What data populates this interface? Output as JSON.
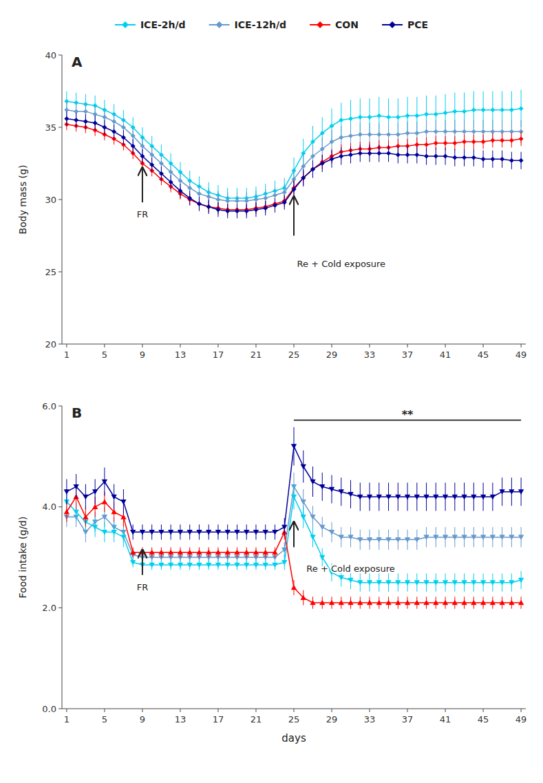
{
  "chart_data": [
    {
      "type": "line",
      "title": "A",
      "ylabel": "Body mass (g)",
      "xlim": [
        0.5,
        49.5
      ],
      "xticks": [
        1,
        5,
        9,
        13,
        17,
        21,
        25,
        29,
        33,
        37,
        41,
        45,
        49
      ],
      "ylim": [
        20,
        40
      ],
      "yticks": [
        20,
        25,
        30,
        35,
        40
      ],
      "grid": false,
      "legend": "top",
      "x": [
        1,
        2,
        3,
        4,
        5,
        6,
        7,
        8,
        9,
        10,
        11,
        12,
        13,
        14,
        15,
        16,
        17,
        18,
        19,
        20,
        21,
        22,
        23,
        24,
        25,
        26,
        27,
        28,
        29,
        30,
        31,
        32,
        33,
        34,
        35,
        36,
        37,
        38,
        39,
        40,
        41,
        42,
        43,
        44,
        45,
        46,
        47,
        48,
        49
      ],
      "series": [
        {
          "name": "ICE-2h/d",
          "color": "#00CFEF",
          "marker": "diamond",
          "values": [
            36.8,
            36.7,
            36.6,
            36.5,
            36.2,
            35.9,
            35.5,
            35.0,
            34.3,
            33.7,
            33.1,
            32.5,
            31.9,
            31.3,
            30.9,
            30.5,
            30.3,
            30.1,
            30.1,
            30.1,
            30.2,
            30.4,
            30.6,
            30.8,
            32.0,
            33.2,
            34.0,
            34.6,
            35.1,
            35.5,
            35.6,
            35.7,
            35.7,
            35.8,
            35.7,
            35.7,
            35.8,
            35.8,
            35.9,
            35.9,
            36.0,
            36.1,
            36.1,
            36.2,
            36.2,
            36.2,
            36.2,
            36.2,
            36.3
          ],
          "errors": [
            0.7,
            0.7,
            0.7,
            0.7,
            0.7,
            0.7,
            0.7,
            0.7,
            0.7,
            0.7,
            0.7,
            0.7,
            0.7,
            0.7,
            0.7,
            0.7,
            0.7,
            0.7,
            0.7,
            0.7,
            0.7,
            0.7,
            0.7,
            0.7,
            0.9,
            1.0,
            1.1,
            1.1,
            1.2,
            1.2,
            1.3,
            1.3,
            1.3,
            1.3,
            1.3,
            1.3,
            1.3,
            1.3,
            1.3,
            1.3,
            1.3,
            1.3,
            1.3,
            1.3,
            1.3,
            1.3,
            1.3,
            1.3,
            1.3
          ]
        },
        {
          "name": "ICE-12h/d",
          "color": "#6699CC",
          "marker": "diamond",
          "values": [
            36.2,
            36.1,
            36.1,
            35.9,
            35.7,
            35.4,
            35.0,
            34.4,
            33.7,
            33.1,
            32.5,
            31.9,
            31.3,
            30.8,
            30.4,
            30.2,
            30.0,
            29.9,
            29.9,
            29.9,
            30.0,
            30.1,
            30.3,
            30.5,
            31.4,
            32.3,
            33.0,
            33.5,
            34.0,
            34.3,
            34.4,
            34.5,
            34.5,
            34.5,
            34.5,
            34.5,
            34.6,
            34.6,
            34.7,
            34.7,
            34.7,
            34.7,
            34.7,
            34.7,
            34.7,
            34.7,
            34.7,
            34.7,
            34.7
          ],
          "errors": [
            0.6,
            0.6,
            0.6,
            0.6,
            0.6,
            0.6,
            0.6,
            0.6,
            0.6,
            0.6,
            0.6,
            0.6,
            0.6,
            0.6,
            0.6,
            0.6,
            0.6,
            0.6,
            0.6,
            0.6,
            0.6,
            0.6,
            0.6,
            0.6,
            0.7,
            0.8,
            0.8,
            0.8,
            0.8,
            0.8,
            0.8,
            0.8,
            0.8,
            0.8,
            0.8,
            0.8,
            0.8,
            0.8,
            0.8,
            0.8,
            0.8,
            0.8,
            0.8,
            0.8,
            0.8,
            0.8,
            0.8,
            0.8,
            0.8
          ]
        },
        {
          "name": "CON",
          "color": "#FF0000",
          "marker": "diamond",
          "values": [
            35.2,
            35.1,
            35.0,
            34.8,
            34.5,
            34.2,
            33.8,
            33.2,
            32.5,
            32.0,
            31.4,
            30.9,
            30.4,
            30.0,
            29.7,
            29.5,
            29.4,
            29.3,
            29.3,
            29.3,
            29.4,
            29.5,
            29.7,
            29.9,
            30.8,
            31.5,
            32.1,
            32.6,
            33.0,
            33.3,
            33.4,
            33.5,
            33.5,
            33.6,
            33.6,
            33.7,
            33.7,
            33.8,
            33.8,
            33.9,
            33.9,
            33.9,
            34.0,
            34.0,
            34.0,
            34.1,
            34.1,
            34.1,
            34.2
          ],
          "errors": [
            0.4,
            0.4,
            0.4,
            0.4,
            0.4,
            0.4,
            0.4,
            0.4,
            0.4,
            0.4,
            0.4,
            0.4,
            0.4,
            0.4,
            0.4,
            0.4,
            0.4,
            0.4,
            0.4,
            0.4,
            0.4,
            0.4,
            0.4,
            0.4,
            0.5,
            0.5,
            0.5,
            0.5,
            0.5,
            0.5,
            0.5,
            0.5,
            0.5,
            0.5,
            0.5,
            0.5,
            0.5,
            0.5,
            0.5,
            0.5,
            0.5,
            0.5,
            0.5,
            0.5,
            0.5,
            0.5,
            0.5,
            0.5,
            0.5
          ]
        },
        {
          "name": "PCE",
          "color": "#000099",
          "marker": "diamond",
          "values": [
            35.6,
            35.5,
            35.4,
            35.3,
            35.0,
            34.7,
            34.3,
            33.7,
            33.0,
            32.4,
            31.8,
            31.2,
            30.6,
            30.1,
            29.7,
            29.5,
            29.3,
            29.2,
            29.2,
            29.2,
            29.3,
            29.4,
            29.6,
            29.8,
            30.7,
            31.5,
            32.1,
            32.5,
            32.8,
            33.0,
            33.1,
            33.2,
            33.2,
            33.2,
            33.2,
            33.1,
            33.1,
            33.1,
            33.0,
            33.0,
            33.0,
            32.9,
            32.9,
            32.9,
            32.8,
            32.8,
            32.8,
            32.7,
            32.7
          ],
          "errors": [
            0.5,
            0.5,
            0.5,
            0.5,
            0.5,
            0.5,
            0.5,
            0.5,
            0.5,
            0.5,
            0.5,
            0.5,
            0.5,
            0.5,
            0.5,
            0.5,
            0.5,
            0.5,
            0.5,
            0.5,
            0.5,
            0.5,
            0.5,
            0.5,
            0.6,
            0.6,
            0.6,
            0.6,
            0.6,
            0.6,
            0.6,
            0.6,
            0.6,
            0.6,
            0.6,
            0.6,
            0.6,
            0.6,
            0.6,
            0.6,
            0.6,
            0.6,
            0.6,
            0.6,
            0.6,
            0.6,
            0.6,
            0.6,
            0.6
          ]
        }
      ],
      "annotations": [
        {
          "text": "FR",
          "x": 9,
          "y": 29.2,
          "arrow": {
            "x": 9,
            "y0": 29.8,
            "y1": 32.2
          }
        },
        {
          "text": "Re + Cold exposure",
          "x": 30,
          "y": 25.8,
          "arrow": {
            "x": 25,
            "y0": 27.5,
            "y1": 30.2
          }
        }
      ]
    },
    {
      "type": "line",
      "title": "B",
      "ylabel": "Food intake (g/d)",
      "xlabel": "days",
      "xlim": [
        0.5,
        49.5
      ],
      "xticks": [
        1,
        5,
        9,
        13,
        17,
        21,
        25,
        29,
        33,
        37,
        41,
        45,
        49
      ],
      "ylim": [
        0.0,
        6.0
      ],
      "yticks": [
        {
          "value": 0.0,
          "label": "0.0"
        },
        {
          "value": 2.0,
          "label": "2.0"
        },
        {
          "value": 4.0,
          "label": "4.0"
        },
        {
          "value": 6.0,
          "label": "6.0"
        }
      ],
      "grid": false,
      "x": [
        1,
        2,
        3,
        4,
        5,
        6,
        7,
        8,
        9,
        10,
        11,
        12,
        13,
        14,
        15,
        16,
        17,
        18,
        19,
        20,
        21,
        22,
        23,
        24,
        25,
        26,
        27,
        28,
        29,
        30,
        31,
        32,
        33,
        34,
        35,
        36,
        37,
        38,
        39,
        40,
        41,
        42,
        43,
        44,
        45,
        46,
        47,
        48,
        49
      ],
      "series": [
        {
          "name": "ICE-12h/d",
          "color": "#6699CC",
          "marker": "triangle-down",
          "values": [
            3.8,
            3.8,
            3.5,
            3.7,
            3.8,
            3.6,
            3.5,
            3.05,
            3.0,
            3.0,
            3.0,
            3.0,
            3.0,
            3.0,
            3.0,
            3.0,
            3.0,
            3.0,
            3.0,
            3.0,
            3.0,
            3.0,
            3.0,
            3.15,
            4.4,
            4.1,
            3.8,
            3.6,
            3.5,
            3.4,
            3.4,
            3.35,
            3.35,
            3.35,
            3.35,
            3.35,
            3.35,
            3.35,
            3.4,
            3.4,
            3.4,
            3.4,
            3.4,
            3.4,
            3.4,
            3.4,
            3.4,
            3.4,
            3.4
          ],
          "errors": [
            0.2,
            0.2,
            0.2,
            0.2,
            0.2,
            0.2,
            0.2,
            0.1,
            0.1,
            0.1,
            0.1,
            0.1,
            0.1,
            0.1,
            0.1,
            0.1,
            0.1,
            0.1,
            0.1,
            0.1,
            0.1,
            0.1,
            0.1,
            0.15,
            0.28,
            0.25,
            0.22,
            0.2,
            0.2,
            0.2,
            0.2,
            0.2,
            0.2,
            0.2,
            0.2,
            0.2,
            0.2,
            0.2,
            0.2,
            0.2,
            0.2,
            0.2,
            0.2,
            0.2,
            0.2,
            0.2,
            0.2,
            0.2,
            0.2
          ]
        },
        {
          "name": "ICE-2h/d",
          "color": "#00CFEF",
          "marker": "triangle-down",
          "values": [
            4.1,
            3.9,
            3.7,
            3.6,
            3.5,
            3.5,
            3.4,
            2.9,
            2.85,
            2.85,
            2.85,
            2.85,
            2.85,
            2.85,
            2.85,
            2.85,
            2.85,
            2.85,
            2.85,
            2.85,
            2.85,
            2.85,
            2.85,
            2.9,
            4.2,
            3.8,
            3.4,
            3.0,
            2.7,
            2.6,
            2.55,
            2.5,
            2.5,
            2.5,
            2.5,
            2.5,
            2.5,
            2.5,
            2.5,
            2.5,
            2.5,
            2.5,
            2.5,
            2.5,
            2.5,
            2.5,
            2.5,
            2.5,
            2.55
          ],
          "errors": [
            0.2,
            0.2,
            0.2,
            0.2,
            0.2,
            0.2,
            0.2,
            0.1,
            0.1,
            0.1,
            0.1,
            0.1,
            0.1,
            0.1,
            0.1,
            0.1,
            0.1,
            0.1,
            0.1,
            0.1,
            0.1,
            0.1,
            0.1,
            0.15,
            0.25,
            0.22,
            0.2,
            0.18,
            0.18,
            0.18,
            0.18,
            0.18,
            0.18,
            0.18,
            0.18,
            0.18,
            0.18,
            0.18,
            0.18,
            0.18,
            0.18,
            0.18,
            0.18,
            0.18,
            0.18,
            0.18,
            0.18,
            0.18,
            0.18
          ]
        },
        {
          "name": "CON",
          "color": "#FF0000",
          "marker": "triangle-up",
          "values": [
            3.9,
            4.2,
            3.8,
            4.0,
            4.1,
            3.9,
            3.8,
            3.1,
            3.1,
            3.1,
            3.1,
            3.1,
            3.1,
            3.1,
            3.1,
            3.1,
            3.1,
            3.1,
            3.1,
            3.1,
            3.1,
            3.1,
            3.1,
            3.5,
            2.4,
            2.2,
            2.1,
            2.1,
            2.1,
            2.1,
            2.1,
            2.1,
            2.1,
            2.1,
            2.1,
            2.1,
            2.1,
            2.1,
            2.1,
            2.1,
            2.1,
            2.1,
            2.1,
            2.1,
            2.1,
            2.1,
            2.1,
            2.1,
            2.1
          ],
          "errors": [
            0.2,
            0.25,
            0.2,
            0.2,
            0.2,
            0.2,
            0.2,
            0.1,
            0.1,
            0.1,
            0.1,
            0.1,
            0.1,
            0.1,
            0.1,
            0.1,
            0.1,
            0.1,
            0.1,
            0.1,
            0.1,
            0.1,
            0.1,
            0.15,
            0.15,
            0.15,
            0.12,
            0.12,
            0.12,
            0.12,
            0.12,
            0.12,
            0.12,
            0.12,
            0.12,
            0.12,
            0.12,
            0.12,
            0.12,
            0.12,
            0.12,
            0.12,
            0.12,
            0.12,
            0.12,
            0.12,
            0.12,
            0.12,
            0.12
          ]
        },
        {
          "name": "PCE",
          "color": "#000099",
          "marker": "triangle-down",
          "values": [
            4.3,
            4.4,
            4.2,
            4.3,
            4.5,
            4.2,
            4.1,
            3.5,
            3.5,
            3.5,
            3.5,
            3.5,
            3.5,
            3.5,
            3.5,
            3.5,
            3.5,
            3.5,
            3.5,
            3.5,
            3.5,
            3.5,
            3.5,
            3.6,
            5.2,
            4.8,
            4.5,
            4.4,
            4.35,
            4.3,
            4.25,
            4.2,
            4.2,
            4.2,
            4.2,
            4.2,
            4.2,
            4.2,
            4.2,
            4.2,
            4.2,
            4.2,
            4.2,
            4.2,
            4.2,
            4.2,
            4.3,
            4.3,
            4.3
          ],
          "errors": [
            0.25,
            0.25,
            0.25,
            0.25,
            0.28,
            0.25,
            0.25,
            0.15,
            0.15,
            0.15,
            0.15,
            0.15,
            0.15,
            0.15,
            0.15,
            0.15,
            0.15,
            0.15,
            0.15,
            0.15,
            0.15,
            0.15,
            0.15,
            0.18,
            0.38,
            0.32,
            0.3,
            0.28,
            0.28,
            0.28,
            0.28,
            0.28,
            0.28,
            0.28,
            0.28,
            0.28,
            0.28,
            0.28,
            0.28,
            0.28,
            0.28,
            0.28,
            0.28,
            0.28,
            0.28,
            0.28,
            0.28,
            0.28,
            0.28
          ]
        }
      ],
      "annotations": [
        {
          "text": "FR",
          "x": 9,
          "y": 2.48,
          "arrow": {
            "x": 9,
            "y0": 2.65,
            "y1": 3.15
          }
        },
        {
          "text": "Re + Cold exposure",
          "x": 31,
          "y": 2.85,
          "arrow": {
            "x": 25,
            "y0": 3.2,
            "y1": 3.7
          }
        }
      ],
      "significance": {
        "text": "**",
        "x0": 25,
        "x1": 49,
        "y": 5.72
      }
    }
  ]
}
